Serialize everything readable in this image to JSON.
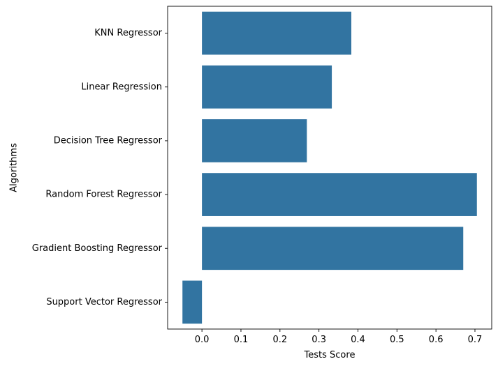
{
  "chart_data": {
    "type": "bar",
    "orientation": "horizontal",
    "categories": [
      "KNN Regressor",
      "Linear Regression",
      "Decision Tree Regressor",
      "Random Forest Regressor",
      "Gradient Boosting Regressor",
      "Support Vector Regressor"
    ],
    "values": [
      0.383,
      0.333,
      0.269,
      0.705,
      0.67,
      -0.05
    ],
    "xlabel": "Tests Score",
    "ylabel": "Algorithms",
    "xlim": [
      -0.088,
      0.743
    ],
    "xticks": [
      0.0,
      0.1,
      0.2,
      0.3,
      0.4,
      0.5,
      0.6,
      0.7
    ],
    "xtick_labels": [
      "0.0",
      "0.1",
      "0.2",
      "0.3",
      "0.4",
      "0.5",
      "0.6",
      "0.7"
    ],
    "grid": false,
    "legend": "none",
    "bar_color": "#3274a1"
  }
}
